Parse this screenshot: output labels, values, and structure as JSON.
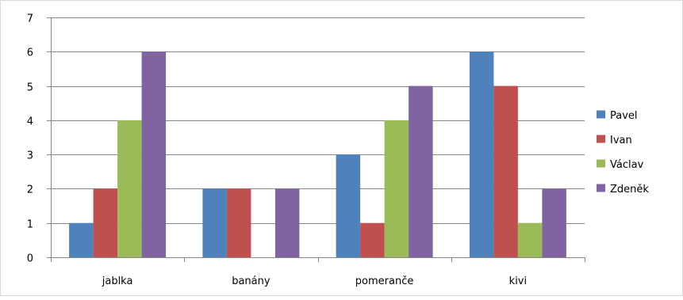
{
  "colors": {
    "axis": "#868686",
    "grid": "#868686",
    "frame": "#d9d9d9",
    "background": "#ffffff"
  },
  "chart_data": {
    "type": "bar",
    "title": "",
    "xlabel": "",
    "ylabel": "",
    "ylim": [
      0,
      7
    ],
    "yticks": [
      "0",
      "1",
      "2",
      "3",
      "4",
      "5",
      "6",
      "7"
    ],
    "grid": true,
    "legend_position": "right",
    "categories": [
      "jablka",
      "banány",
      "pomeranče",
      "kivi"
    ],
    "series": [
      {
        "name": "Pavel",
        "color": "#4f81bd",
        "values": [
          1,
          2,
          3,
          6
        ]
      },
      {
        "name": "Ivan",
        "color": "#c0504d",
        "values": [
          2,
          2,
          1,
          5
        ]
      },
      {
        "name": "Václav",
        "color": "#9bbb59",
        "values": [
          4,
          0,
          4,
          1
        ]
      },
      {
        "name": "Zdeněk",
        "color": "#8064a2",
        "values": [
          6,
          2,
          5,
          2
        ]
      }
    ]
  }
}
